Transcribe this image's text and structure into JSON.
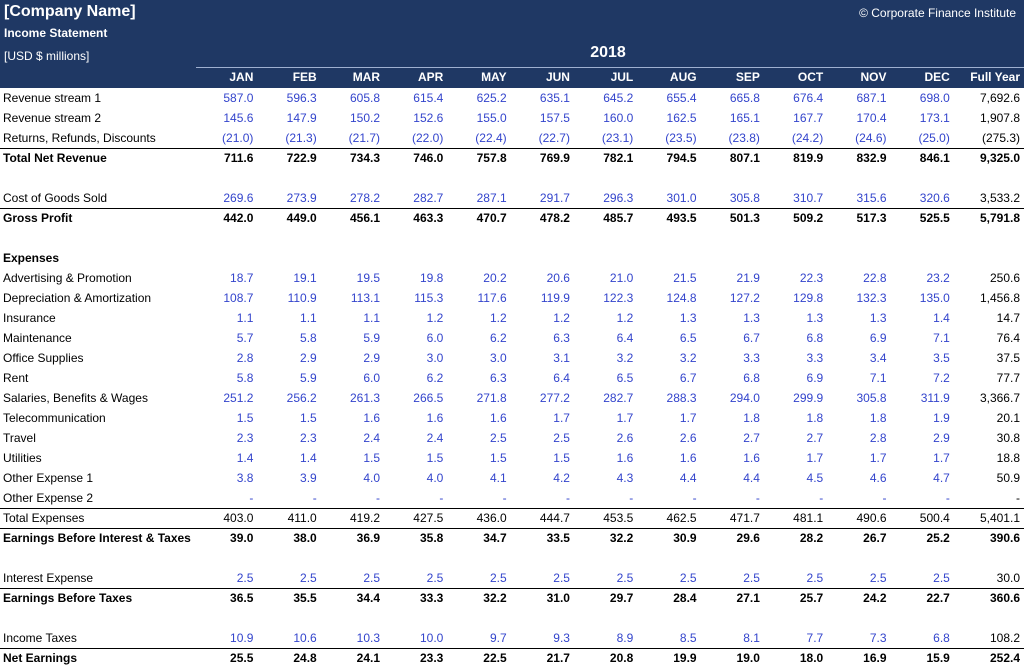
{
  "header": {
    "company": "[Company Name]",
    "title": "Income Statement",
    "units": "[USD $ millions]",
    "copyright": "© Corporate Finance Institute",
    "year": "2018"
  },
  "table": {
    "columns": [
      "JAN",
      "FEB",
      "MAR",
      "APR",
      "MAY",
      "JUN",
      "JUL",
      "AUG",
      "SEP",
      "OCT",
      "NOV",
      "DEC",
      "Full Year"
    ],
    "sections": [
      {
        "rows": [
          {
            "label": "Revenue stream 1",
            "style": "input",
            "values": [
              "587.0",
              "596.3",
              "605.8",
              "615.4",
              "625.2",
              "635.1",
              "645.2",
              "655.4",
              "665.8",
              "676.4",
              "687.1",
              "698.0",
              "7,692.6"
            ]
          },
          {
            "label": "Revenue stream 2",
            "style": "input",
            "values": [
              "145.6",
              "147.9",
              "150.2",
              "152.6",
              "155.0",
              "157.5",
              "160.0",
              "162.5",
              "165.1",
              "167.7",
              "170.4",
              "173.1",
              "1,907.8"
            ]
          },
          {
            "label": "Returns, Refunds, Discounts",
            "style": "input",
            "values": [
              "(21.0)",
              "(21.3)",
              "(21.7)",
              "(22.0)",
              "(22.4)",
              "(22.7)",
              "(23.1)",
              "(23.5)",
              "(23.8)",
              "(24.2)",
              "(24.6)",
              "(25.0)",
              "(275.3)"
            ]
          },
          {
            "label": "Total Net Revenue",
            "style": "total",
            "values": [
              "711.6",
              "722.9",
              "734.3",
              "746.0",
              "757.8",
              "769.9",
              "782.1",
              "794.5",
              "807.1",
              "819.9",
              "832.9",
              "846.1",
              "9,325.0"
            ]
          }
        ]
      },
      {
        "rows": [
          {
            "label": "Cost of Goods Sold",
            "style": "input",
            "values": [
              "269.6",
              "273.9",
              "278.2",
              "282.7",
              "287.1",
              "291.7",
              "296.3",
              "301.0",
              "305.8",
              "310.7",
              "315.6",
              "320.6",
              "3,533.2"
            ]
          },
          {
            "label": "Gross Profit",
            "style": "total",
            "values": [
              "442.0",
              "449.0",
              "456.1",
              "463.3",
              "470.7",
              "478.2",
              "485.7",
              "493.5",
              "501.3",
              "509.2",
              "517.3",
              "525.5",
              "5,791.8"
            ]
          }
        ]
      },
      {
        "rows": [
          {
            "label": "Expenses",
            "style": "heading"
          },
          {
            "label": "Advertising & Promotion",
            "style": "input",
            "values": [
              "18.7",
              "19.1",
              "19.5",
              "19.8",
              "20.2",
              "20.6",
              "21.0",
              "21.5",
              "21.9",
              "22.3",
              "22.8",
              "23.2",
              "250.6"
            ]
          },
          {
            "label": "Depreciation & Amortization",
            "style": "input",
            "values": [
              "108.7",
              "110.9",
              "113.1",
              "115.3",
              "117.6",
              "119.9",
              "122.3",
              "124.8",
              "127.2",
              "129.8",
              "132.3",
              "135.0",
              "1,456.8"
            ]
          },
          {
            "label": "Insurance",
            "style": "input",
            "values": [
              "1.1",
              "1.1",
              "1.1",
              "1.2",
              "1.2",
              "1.2",
              "1.2",
              "1.3",
              "1.3",
              "1.3",
              "1.3",
              "1.4",
              "14.7"
            ]
          },
          {
            "label": "Maintenance",
            "style": "input",
            "values": [
              "5.7",
              "5.8",
              "5.9",
              "6.0",
              "6.2",
              "6.3",
              "6.4",
              "6.5",
              "6.7",
              "6.8",
              "6.9",
              "7.1",
              "76.4"
            ]
          },
          {
            "label": "Office Supplies",
            "style": "input",
            "values": [
              "2.8",
              "2.9",
              "2.9",
              "3.0",
              "3.0",
              "3.1",
              "3.2",
              "3.2",
              "3.3",
              "3.3",
              "3.4",
              "3.5",
              "37.5"
            ]
          },
          {
            "label": "Rent",
            "style": "input",
            "values": [
              "5.8",
              "5.9",
              "6.0",
              "6.2",
              "6.3",
              "6.4",
              "6.5",
              "6.7",
              "6.8",
              "6.9",
              "7.1",
              "7.2",
              "77.7"
            ]
          },
          {
            "label": "Salaries, Benefits & Wages",
            "style": "input",
            "values": [
              "251.2",
              "256.2",
              "261.3",
              "266.5",
              "271.8",
              "277.2",
              "282.7",
              "288.3",
              "294.0",
              "299.9",
              "305.8",
              "311.9",
              "3,366.7"
            ]
          },
          {
            "label": "Telecommunication",
            "style": "input",
            "values": [
              "1.5",
              "1.5",
              "1.6",
              "1.6",
              "1.6",
              "1.7",
              "1.7",
              "1.7",
              "1.8",
              "1.8",
              "1.8",
              "1.9",
              "20.1"
            ]
          },
          {
            "label": "Travel",
            "style": "input",
            "values": [
              "2.3",
              "2.3",
              "2.4",
              "2.4",
              "2.5",
              "2.5",
              "2.6",
              "2.6",
              "2.7",
              "2.7",
              "2.8",
              "2.9",
              "30.8"
            ]
          },
          {
            "label": "Utilities",
            "style": "input",
            "values": [
              "1.4",
              "1.4",
              "1.5",
              "1.5",
              "1.5",
              "1.5",
              "1.6",
              "1.6",
              "1.6",
              "1.7",
              "1.7",
              "1.7",
              "18.8"
            ]
          },
          {
            "label": "Other Expense 1",
            "style": "input",
            "values": [
              "3.8",
              "3.9",
              "4.0",
              "4.0",
              "4.1",
              "4.2",
              "4.3",
              "4.4",
              "4.4",
              "4.5",
              "4.6",
              "4.7",
              "50.9"
            ]
          },
          {
            "label": "Other Expense 2",
            "style": "input",
            "values": [
              "-",
              "-",
              "-",
              "-",
              "-",
              "-",
              "-",
              "-",
              "-",
              "-",
              "-",
              "-",
              "-"
            ]
          },
          {
            "label": "Total Expenses",
            "style": "subtotal",
            "values": [
              "403.0",
              "411.0",
              "419.2",
              "427.5",
              "436.0",
              "444.7",
              "453.5",
              "462.5",
              "471.7",
              "481.1",
              "490.6",
              "500.4",
              "5,401.1"
            ]
          },
          {
            "label": "Earnings Before Interest & Taxes",
            "style": "total",
            "values": [
              "39.0",
              "38.0",
              "36.9",
              "35.8",
              "34.7",
              "33.5",
              "32.2",
              "30.9",
              "29.6",
              "28.2",
              "26.7",
              "25.2",
              "390.6"
            ]
          }
        ]
      },
      {
        "rows": [
          {
            "label": "Interest Expense",
            "style": "input",
            "values": [
              "2.5",
              "2.5",
              "2.5",
              "2.5",
              "2.5",
              "2.5",
              "2.5",
              "2.5",
              "2.5",
              "2.5",
              "2.5",
              "2.5",
              "30.0"
            ]
          },
          {
            "label": "Earnings Before Taxes",
            "style": "total",
            "values": [
              "36.5",
              "35.5",
              "34.4",
              "33.3",
              "32.2",
              "31.0",
              "29.7",
              "28.4",
              "27.1",
              "25.7",
              "24.2",
              "22.7",
              "360.6"
            ]
          }
        ]
      },
      {
        "rows": [
          {
            "label": "Income Taxes",
            "style": "input",
            "values": [
              "10.9",
              "10.6",
              "10.3",
              "10.0",
              "9.7",
              "9.3",
              "8.9",
              "8.5",
              "8.1",
              "7.7",
              "7.3",
              "6.8",
              "108.2"
            ]
          },
          {
            "label": "Net Earnings",
            "style": "total",
            "values": [
              "25.5",
              "24.8",
              "24.1",
              "23.3",
              "22.5",
              "21.7",
              "20.8",
              "19.9",
              "19.0",
              "18.0",
              "16.9",
              "15.9",
              "252.4"
            ]
          }
        ]
      }
    ]
  }
}
